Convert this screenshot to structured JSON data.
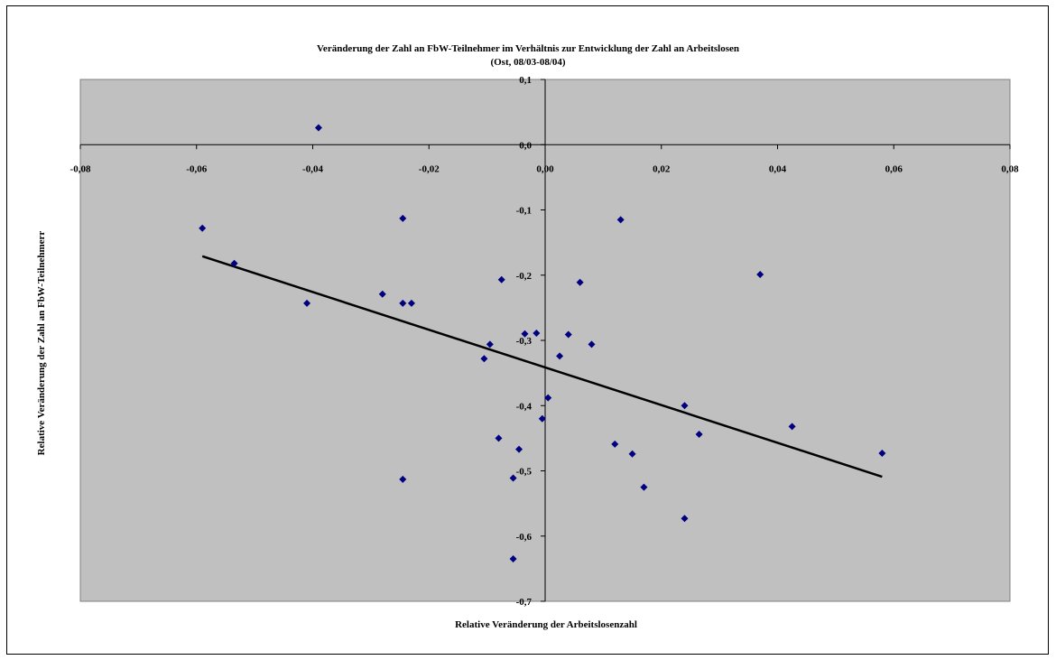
{
  "colors": {
    "plot_bg": "#c0c0c0",
    "marker": "#000080",
    "trend": "#000000",
    "axis": "#000000"
  },
  "chart_data": {
    "type": "scatter",
    "title": "Veränderung der Zahl an FbW-Teilnehmer im Verhältnis zur Entwicklung der Zahl an Arbeitslosen",
    "subtitle": "(Ost, 08/03-08/04)",
    "xlabel": "Relative Veränderung der Arbeitslosenzahl",
    "ylabel": "Relative Veränderung der Zahl an FbW-Teilnehmerr",
    "xlim": [
      -0.08,
      0.08
    ],
    "ylim": [
      -0.7,
      0.1
    ],
    "x_ticks": [
      -0.08,
      -0.06,
      -0.04,
      -0.02,
      0.0,
      0.02,
      0.04,
      0.06,
      0.08
    ],
    "x_tick_labels": [
      "-0,08",
      "-0,06",
      "-0,04",
      "-0,02",
      "0,00",
      "0,02",
      "0,04",
      "0,06",
      "0,08"
    ],
    "y_ticks": [
      0.1,
      0.0,
      -0.1,
      -0.2,
      -0.3,
      -0.4,
      -0.5,
      -0.6,
      -0.7
    ],
    "y_tick_labels": [
      "0,1",
      "0,0",
      "-0,1",
      "-0,2",
      "-0,3",
      "-0,4",
      "-0,5",
      "-0,6",
      "-0,7"
    ],
    "grid": false,
    "legend": "none",
    "series": [
      {
        "points": [
          {
            "x": -0.059,
            "y": -0.128
          },
          {
            "x": -0.0535,
            "y": -0.182
          },
          {
            "x": -0.039,
            "y": 0.026
          },
          {
            "x": -0.041,
            "y": -0.243
          },
          {
            "x": -0.028,
            "y": -0.229
          },
          {
            "x": -0.0245,
            "y": -0.113
          },
          {
            "x": -0.0245,
            "y": -0.243
          },
          {
            "x": -0.023,
            "y": -0.243
          },
          {
            "x": -0.0245,
            "y": -0.513
          },
          {
            "x": -0.0105,
            "y": -0.328
          },
          {
            "x": -0.0095,
            "y": -0.306
          },
          {
            "x": -0.0075,
            "y": -0.207
          },
          {
            "x": -0.008,
            "y": -0.45
          },
          {
            "x": -0.0055,
            "y": -0.511
          },
          {
            "x": -0.0055,
            "y": -0.635
          },
          {
            "x": -0.0045,
            "y": -0.467
          },
          {
            "x": -0.0035,
            "y": -0.29
          },
          {
            "x": -0.0015,
            "y": -0.289
          },
          {
            "x": 0.0005,
            "y": -0.388
          },
          {
            "x": -0.0005,
            "y": -0.42
          },
          {
            "x": 0.0025,
            "y": -0.324
          },
          {
            "x": 0.004,
            "y": -0.291
          },
          {
            "x": 0.006,
            "y": -0.211
          },
          {
            "x": 0.008,
            "y": -0.306
          },
          {
            "x": 0.012,
            "y": -0.459
          },
          {
            "x": 0.013,
            "y": -0.115
          },
          {
            "x": 0.015,
            "y": -0.474
          },
          {
            "x": 0.017,
            "y": -0.525
          },
          {
            "x": 0.024,
            "y": -0.4
          },
          {
            "x": 0.024,
            "y": -0.573
          },
          {
            "x": 0.0265,
            "y": -0.444
          },
          {
            "x": 0.037,
            "y": -0.199
          },
          {
            "x": 0.0425,
            "y": -0.432
          },
          {
            "x": 0.058,
            "y": -0.473
          }
        ]
      }
    ],
    "trendline": {
      "x": [
        -0.059,
        0.058
      ],
      "y": [
        -0.171,
        -0.509
      ]
    }
  }
}
